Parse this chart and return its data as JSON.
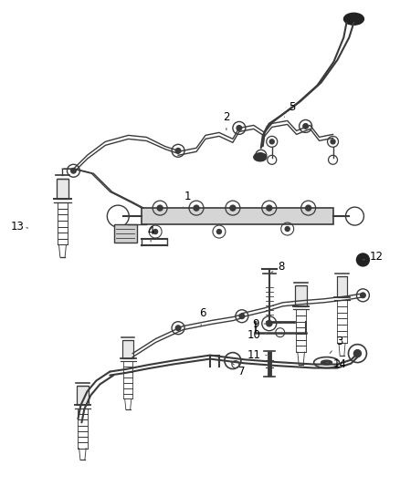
{
  "bg_color": "#ffffff",
  "line_color": "#3a3a3a",
  "label_color": "#000000",
  "fig_width": 4.38,
  "fig_height": 5.33,
  "dpi": 100
}
